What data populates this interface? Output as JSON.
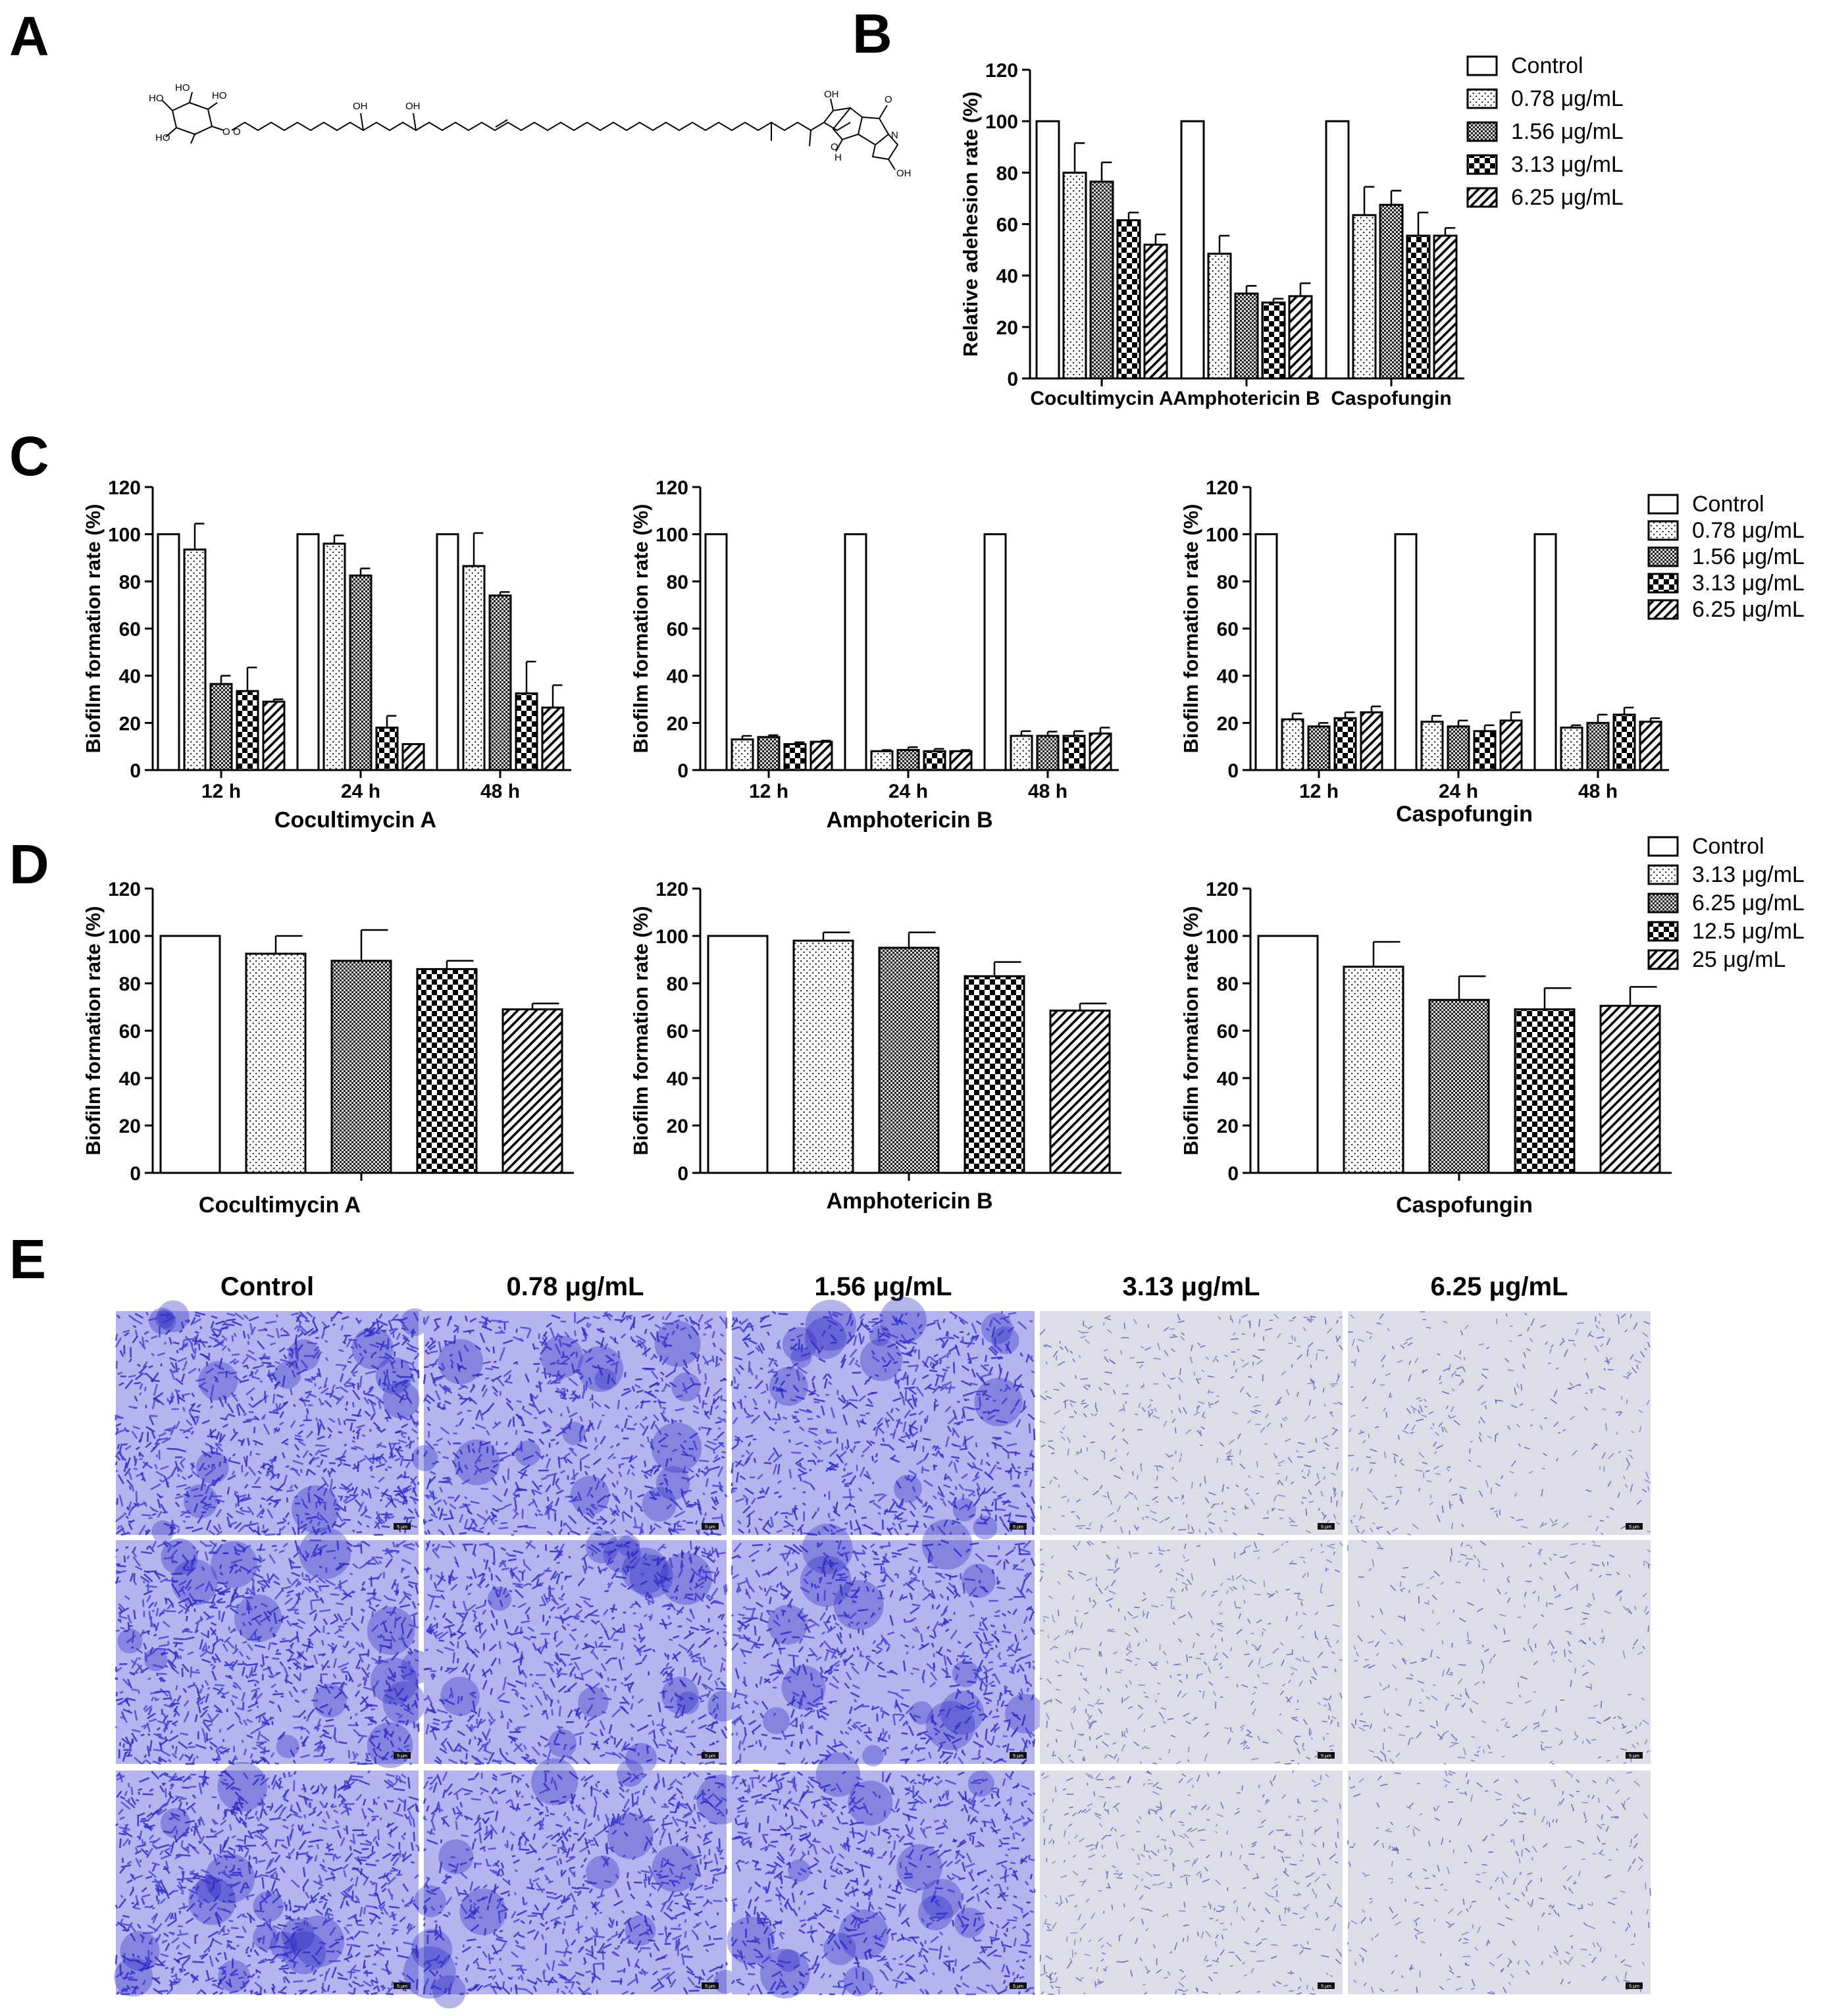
{
  "panel_labels": [
    "A",
    "B",
    "C",
    "D",
    "E"
  ],
  "structure_labels": [
    "HO",
    "HO",
    "HO",
    "HO",
    "O",
    "O",
    "OH",
    "OH",
    "OH",
    "O",
    "N",
    "H",
    "O",
    "OH"
  ],
  "colors": {
    "ink": "#000000",
    "fill": "#ffffff",
    "stain_dense": "#3a3ad0",
    "stain_light": "#c8cbe0",
    "background": "#ffffff"
  },
  "patterns": [
    "open",
    "dots",
    "fine-crosshatch",
    "checker",
    "diagonal-hatch"
  ],
  "chart_data": [
    {
      "id": "B",
      "type": "bar",
      "ylabel": "Relative adehesion rate (%)",
      "ylim": [
        0,
        120
      ],
      "yticks": [
        "0",
        "20",
        "40",
        "60",
        "80",
        "100",
        "120"
      ],
      "categories": [
        "Cocultimycin A",
        "Amphotericin B",
        "Caspofungin"
      ],
      "legend": [
        "Control",
        "0.78 μg/mL",
        "1.56 μg/mL",
        "3.13 μg/mL",
        "6.25 μg/mL"
      ],
      "legend_position": "right",
      "series": [
        {
          "name": "Control",
          "values": [
            100,
            100,
            100
          ],
          "errors": [
            0,
            0,
            0
          ]
        },
        {
          "name": "0.78 μg/mL",
          "values": [
            80,
            48.5,
            63.5
          ],
          "errors": [
            11.5,
            7,
            11
          ]
        },
        {
          "name": "1.56 μg/mL",
          "values": [
            76.5,
            33,
            67.5
          ],
          "errors": [
            7.5,
            3,
            5.5
          ]
        },
        {
          "name": "3.13 μg/mL",
          "values": [
            61.5,
            29.5,
            55.5
          ],
          "errors": [
            3,
            1.5,
            9
          ]
        },
        {
          "name": "6.25 μg/mL",
          "values": [
            52,
            32,
            55.5
          ],
          "errors": [
            4,
            5,
            3
          ]
        }
      ]
    },
    {
      "id": "C1",
      "type": "bar",
      "title": "Cocultimycin A",
      "ylabel": "Biofilm formation rate (%)",
      "ylim": [
        0,
        120
      ],
      "yticks": [
        "0",
        "20",
        "40",
        "60",
        "80",
        "100",
        "120"
      ],
      "categories": [
        "12 h",
        "24 h",
        "48 h"
      ],
      "series": [
        {
          "values": [
            100,
            100,
            100
          ],
          "errors": [
            0,
            0,
            0
          ]
        },
        {
          "values": [
            93.5,
            96,
            86.5
          ],
          "errors": [
            11,
            3.5,
            14
          ]
        },
        {
          "values": [
            36.5,
            82.5,
            74
          ],
          "errors": [
            3.5,
            3,
            1.5
          ]
        },
        {
          "values": [
            33.5,
            18,
            32.5
          ],
          "errors": [
            10,
            5,
            13.5
          ]
        },
        {
          "values": [
            29,
            11,
            26.5
          ],
          "errors": [
            1,
            0,
            9.5
          ]
        }
      ]
    },
    {
      "id": "C2",
      "type": "bar",
      "title": "Amphotericin B",
      "ylabel": "Biofilm formation rate (%)",
      "ylim": [
        0,
        120
      ],
      "yticks": [
        "0",
        "20",
        "40",
        "60",
        "80",
        "100",
        "120"
      ],
      "categories": [
        "12 h",
        "24 h",
        "48 h"
      ],
      "series": [
        {
          "values": [
            100,
            100,
            100
          ],
          "errors": [
            0,
            0,
            0
          ]
        },
        {
          "values": [
            13,
            8,
            14.5
          ],
          "errors": [
            1.5,
            0.5,
            2
          ]
        },
        {
          "values": [
            14,
            8.5,
            14.5
          ],
          "errors": [
            0.8,
            1.2,
            1.8
          ]
        },
        {
          "values": [
            11,
            8,
            14.5
          ],
          "errors": [
            0.8,
            1,
            2
          ]
        },
        {
          "values": [
            12,
            8,
            15.5
          ],
          "errors": [
            0.5,
            0.5,
            2.5
          ]
        }
      ]
    },
    {
      "id": "C3",
      "type": "bar",
      "title": "Caspofungin",
      "ylabel": "Biofilm formation rate (%)",
      "ylim": [
        0,
        120
      ],
      "yticks": [
        "0",
        "20",
        "40",
        "60",
        "80",
        "100",
        "120"
      ],
      "categories": [
        "12 h",
        "24 h",
        "48 h"
      ],
      "legend": [
        "Control",
        "0.78 μg/mL",
        "1.56 μg/mL",
        "3.13 μg/mL",
        "6.25 μg/mL"
      ],
      "legend_position": "right",
      "series": [
        {
          "name": "Control",
          "values": [
            100,
            100,
            100
          ],
          "errors": [
            0,
            0,
            0
          ]
        },
        {
          "name": "0.78 μg/mL",
          "values": [
            21.5,
            20.5,
            18
          ],
          "errors": [
            2.5,
            2.5,
            1
          ]
        },
        {
          "name": "1.56 μg/mL",
          "values": [
            18.5,
            18.5,
            20
          ],
          "errors": [
            1.5,
            2.5,
            3.5
          ]
        },
        {
          "name": "3.13 μg/mL",
          "values": [
            22,
            16.5,
            23.5
          ],
          "errors": [
            2.5,
            2.5,
            3
          ]
        },
        {
          "name": "6.25 μg/mL",
          "values": [
            24.5,
            21,
            20.5
          ],
          "errors": [
            2.5,
            3.5,
            1.5
          ]
        }
      ]
    },
    {
      "id": "D1",
      "type": "bar",
      "title": "Cocultimycin A",
      "ylabel": "Biofilm formation rate (%)",
      "ylim": [
        0,
        120
      ],
      "yticks": [
        "0",
        "20",
        "40",
        "60",
        "80",
        "100",
        "120"
      ],
      "categories": [
        "Control",
        "3.13 μg/mL",
        "6.25 μg/mL",
        "12.5 μg/mL",
        "25 μg/mL"
      ],
      "values": [
        100,
        92.5,
        89.5,
        86,
        69
      ],
      "errors": [
        0,
        7.5,
        13,
        3.5,
        2.5
      ]
    },
    {
      "id": "D2",
      "type": "bar",
      "title": "Amphotericin B",
      "ylabel": "Biofilm formation rate (%)",
      "ylim": [
        0,
        120
      ],
      "yticks": [
        "0",
        "20",
        "40",
        "60",
        "80",
        "100",
        "120"
      ],
      "categories": [
        "Control",
        "3.13 μg/mL",
        "6.25 μg/mL",
        "12.5 μg/mL",
        "25 μg/mL"
      ],
      "values": [
        100,
        98,
        95,
        83,
        68.5
      ],
      "errors": [
        0,
        3.5,
        6.5,
        6,
        3
      ]
    },
    {
      "id": "D3",
      "type": "bar",
      "title": "Caspofungin",
      "ylabel": "Biofilm formation rate (%)",
      "ylim": [
        0,
        120
      ],
      "yticks": [
        "0",
        "20",
        "40",
        "60",
        "80",
        "100",
        "120"
      ],
      "categories": [
        "Control",
        "3.13 μg/mL",
        "6.25 μg/mL",
        "12.5 μg/mL",
        "25 μg/mL"
      ],
      "legend": [
        "Control",
        "3.13 μg/mL",
        "6.25 μg/mL",
        "12.5 μg/mL",
        "25 μg/mL"
      ],
      "legend_position": "right",
      "values": [
        100,
        87,
        73,
        69,
        70.5
      ],
      "errors": [
        0,
        10.5,
        10,
        9,
        8
      ]
    }
  ],
  "panel_E": {
    "columns": [
      "Control",
      "0.78 μg/mL",
      "1.56 μg/mL",
      "3.13 μg/mL",
      "6.25 μg/mL"
    ],
    "rows": 3,
    "density": [
      1.0,
      0.78,
      0.72,
      0.32,
      0.2
    ],
    "scale_bar": "5 μm"
  }
}
